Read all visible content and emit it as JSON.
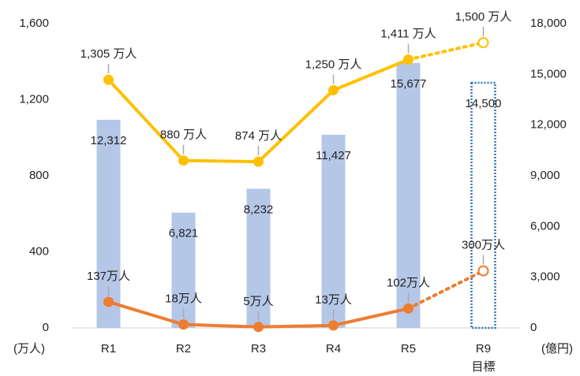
{
  "chart_data": {
    "type": "bar_line",
    "categories": [
      "R1",
      "R2",
      "R3",
      "R4",
      "R5",
      "R9"
    ],
    "annotations": [
      "目標"
    ],
    "ylabel": "(万人)",
    "y2label": "(億円)",
    "ylim": [
      0,
      1600
    ],
    "yticks": [
      0,
      {
        "value": 400,
        "label": "400"
      },
      {
        "value": 800,
        "label": "800"
      },
      {
        "value": 1200,
        "label": "1,200"
      },
      {
        "value": 1600,
        "label": "1,600"
      }
    ],
    "y2lim": [
      0,
      18000
    ],
    "y2ticks": [
      0,
      {
        "value": 3000,
        "label": "3,000"
      },
      {
        "value": 6000,
        "label": "6,000"
      },
      {
        "value": 9000,
        "label": "9,000"
      },
      {
        "value": 12000,
        "label": "12,000"
      },
      {
        "value": 15000,
        "label": "15,000"
      },
      {
        "value": 18000,
        "label": "18,000"
      }
    ],
    "grid": false,
    "series": [
      {
        "type": "bar",
        "axis": "y2",
        "color": "#b4c7e7",
        "values": [
          12312,
          6821,
          8232,
          11427,
          15677,
          14500
        ],
        "value_labels": [
          "12,312",
          "6,821",
          "8,232",
          "11,427",
          "15,677",
          "14,500"
        ]
      },
      {
        "type": "line",
        "color": "#ffc000",
        "values": [
          1305,
          880,
          874,
          1250,
          1411,
          1500
        ],
        "value_labels": [
          "1,305 万人",
          "880 万人",
          "874 万人",
          "1,250 万人",
          "1,411 万人",
          "1,500 万人"
        ]
      },
      {
        "type": "line",
        "color": "#ed7d31",
        "values": [
          137,
          18,
          5,
          13,
          102,
          300
        ],
        "value_labels": [
          "137万人",
          "18万人",
          "5万人",
          "13万人",
          "102万人",
          "300万人"
        ]
      }
    ]
  }
}
